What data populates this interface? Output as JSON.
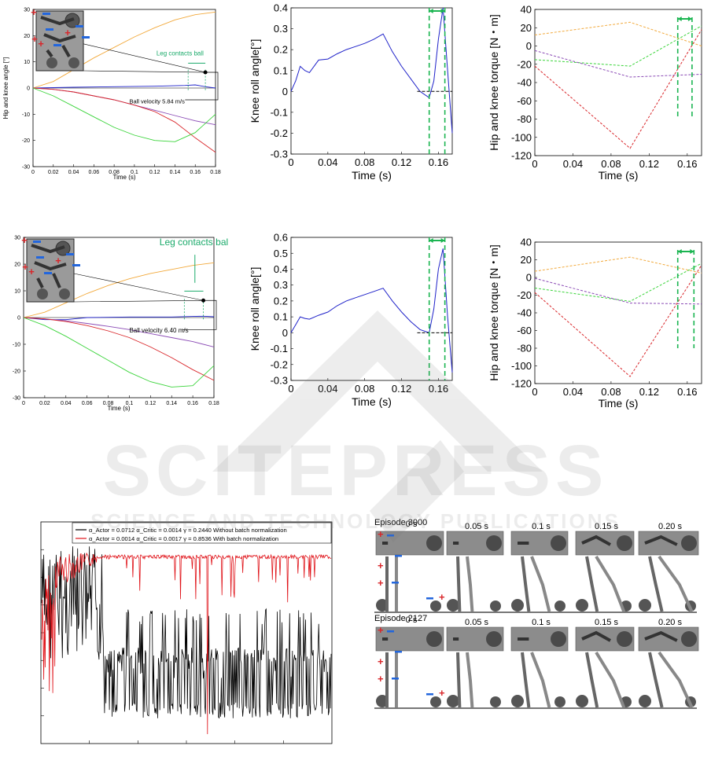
{
  "watermark": {
    "title": "SCITEPRESS",
    "subtitle": "SCIENCE AND TECHNOLOGY PUBLICATIONS"
  },
  "colors": {
    "orange": "#f2a93b",
    "blue": "#1f22c9",
    "red": "#d9262a",
    "purple": "#8a4ab5",
    "green": "#3ad43a",
    "teal": "#1aaa6a",
    "dash_green": "#1bb551",
    "black": "#000000"
  },
  "figure_rows": [
    {
      "angle_plot": {
        "ylabel": "Hip and knee angle [°]",
        "xlabel": "Time (s)",
        "ylim": [
          -30,
          30
        ],
        "xlim": [
          0,
          0.18
        ],
        "yticks": [
          "30",
          "20",
          "10",
          "0",
          "-10",
          "-20",
          "-30"
        ],
        "xticks": [
          "0",
          "0.02",
          "0.04",
          "0.06",
          "0.08",
          "0.1",
          "0.12",
          "0.14",
          "0.16",
          "0.18"
        ],
        "contact_label": "Leg contacts ball",
        "ball_velocity": "Ball velocity 5.84 m/s",
        "series": [
          {
            "color": "orange",
            "x": [
              0,
              0.02,
              0.04,
              0.06,
              0.08,
              0.1,
              0.12,
              0.14,
              0.16,
              0.18
            ],
            "y": [
              0,
              2.5,
              7,
              11.5,
              15.5,
              19.5,
              23,
              26,
              28,
              29
            ]
          },
          {
            "color": "blue",
            "x": [
              0,
              0.04,
              0.08,
              0.12,
              0.15,
              0.16,
              0.17,
              0.18
            ],
            "y": [
              0,
              0.3,
              0.5,
              0.7,
              1,
              1.2,
              0.5,
              0
            ]
          },
          {
            "color": "purple",
            "x": [
              0,
              0.02,
              0.04,
              0.06,
              0.08,
              0.1,
              0.12,
              0.14,
              0.16,
              0.18
            ],
            "y": [
              0,
              -0.5,
              -1.5,
              -3,
              -4.5,
              -6.5,
              -8.5,
              -10.5,
              -12.5,
              -14
            ]
          },
          {
            "color": "red",
            "x": [
              0,
              0.02,
              0.04,
              0.06,
              0.08,
              0.1,
              0.12,
              0.14,
              0.16,
              0.18
            ],
            "y": [
              0,
              -0.5,
              -1.5,
              -3,
              -4.5,
              -6.5,
              -9,
              -13,
              -19,
              -24.5
            ]
          },
          {
            "color": "green",
            "x": [
              0,
              0.02,
              0.04,
              0.06,
              0.08,
              0.1,
              0.12,
              0.14,
              0.16,
              0.18
            ],
            "y": [
              0,
              -3,
              -7,
              -11,
              -15,
              -18,
              -20,
              -20.5,
              -17,
              -10
            ]
          }
        ],
        "contact_window": [
          0.153,
          0.17
        ],
        "contact_point": [
          0.17,
          6
        ]
      },
      "roll_plot": {
        "ylabel": "Knee roll angle[°]",
        "xlabel": "Time (s)",
        "ylim": [
          -0.3,
          0.4
        ],
        "xlim": [
          0,
          0.175
        ],
        "yticks": [
          "0.4",
          "0.3",
          "0.2",
          "0.1",
          "0",
          "-0.1",
          "-0.2",
          "-0.3"
        ],
        "xticks": [
          "0",
          "0.04",
          "0.08",
          "0.12",
          "0.16"
        ],
        "zero_label": "0",
        "window": [
          0.15,
          0.167
        ],
        "series": {
          "x": [
            0,
            0.005,
            0.01,
            0.015,
            0.02,
            0.03,
            0.04,
            0.05,
            0.06,
            0.07,
            0.08,
            0.09,
            0.1,
            0.11,
            0.12,
            0.13,
            0.14,
            0.15,
            0.155,
            0.16,
            0.165,
            0.17,
            0.175
          ],
          "y": [
            0,
            0.05,
            0.12,
            0.1,
            0.09,
            0.15,
            0.155,
            0.18,
            0.2,
            0.215,
            0.23,
            0.25,
            0.275,
            0.19,
            0.12,
            0.06,
            0.0,
            -0.03,
            0.05,
            0.25,
            0.4,
            0.1,
            -0.2
          ]
        }
      },
      "torque_plot": {
        "ylabel": "Hip and knee torque [N・m]",
        "xlabel": "Time (s)",
        "ylim": [
          -120,
          40
        ],
        "xlim": [
          0,
          0.175
        ],
        "yticks": [
          "40",
          "20",
          "0",
          "-20",
          "-40",
          "-60",
          "-80",
          "-100",
          "-120"
        ],
        "xticks": [
          "0",
          "0.04",
          "0.08",
          "0.12",
          "0.16"
        ],
        "window": [
          0.15,
          0.165
        ],
        "series": [
          {
            "color": "orange",
            "x": [
              0,
              0.1,
              0.175
            ],
            "y": [
              12,
              26,
              0
            ]
          },
          {
            "color": "green",
            "x": [
              0,
              0.1,
              0.175
            ],
            "y": [
              -15,
              -22,
              22
            ]
          },
          {
            "color": "purple",
            "x": [
              0,
              0.1,
              0.175
            ],
            "y": [
              -5,
              -34,
              -31
            ]
          },
          {
            "color": "red",
            "x": [
              0,
              0.1,
              0.175
            ],
            "y": [
              -22,
              -112,
              18
            ]
          }
        ]
      }
    },
    {
      "angle_plot": {
        "ylabel": "",
        "xlabel": "Time (s)",
        "ylim": [
          -30,
          30
        ],
        "xlim": [
          0,
          0.18
        ],
        "yticks": [
          "30",
          "20",
          "10",
          "0",
          "-10",
          "-20",
          "-30"
        ],
        "xticks": [
          "0",
          "0.02",
          "0.04",
          "0.06",
          "0.08",
          "0.1",
          "0.12",
          "0.14",
          "0.16",
          "0.18"
        ],
        "contact_label": "Leg contacts ball",
        "ball_velocity": "Ball velocity 6.40 m/s",
        "series": [
          {
            "color": "orange",
            "x": [
              0,
              0.02,
              0.04,
              0.06,
              0.08,
              0.1,
              0.12,
              0.14,
              0.16,
              0.18
            ],
            "y": [
              0,
              2,
              5.5,
              9,
              12,
              14.5,
              16.5,
              18,
              19.5,
              20.5
            ]
          },
          {
            "color": "blue",
            "x": [
              0,
              0.02,
              0.04,
              0.06,
              0.1,
              0.14,
              0.16,
              0.17,
              0.18
            ],
            "y": [
              0,
              -0.8,
              -0.8,
              0,
              0.2,
              0.2,
              0.4,
              0.5,
              0.3
            ]
          },
          {
            "color": "purple",
            "x": [
              0,
              0.02,
              0.04,
              0.06,
              0.08,
              0.1,
              0.12,
              0.14,
              0.16,
              0.18
            ],
            "y": [
              0,
              -0.5,
              -1.2,
              -2.2,
              -3.3,
              -4.5,
              -6,
              -7.5,
              -9,
              -11
            ]
          },
          {
            "color": "red",
            "x": [
              0,
              0.02,
              0.04,
              0.06,
              0.08,
              0.1,
              0.12,
              0.14,
              0.16,
              0.18
            ],
            "y": [
              0,
              -0.5,
              -1.5,
              -3,
              -5,
              -7.5,
              -11,
              -15,
              -19.5,
              -23.5
            ]
          },
          {
            "color": "green",
            "x": [
              0,
              0.02,
              0.04,
              0.06,
              0.08,
              0.1,
              0.12,
              0.14,
              0.16,
              0.18
            ],
            "y": [
              0,
              -3,
              -7,
              -11.5,
              -16,
              -20.5,
              -24,
              -26,
              -25.5,
              -18
            ]
          }
        ],
        "contact_window": [
          0.152,
          0.17
        ],
        "contact_point": [
          0.17,
          6.4
        ]
      },
      "roll_plot": {
        "ylabel": "Knee roll angle[°]",
        "xlabel": "Time (s)",
        "ylim": [
          -0.3,
          0.6
        ],
        "xlim": [
          0,
          0.175
        ],
        "yticks": [
          "0.6",
          "0.5",
          "0.4",
          "0.3",
          "0.2",
          "0.1",
          "0",
          "-0.1",
          "-0.2",
          "-0.3"
        ],
        "xticks": [
          "0",
          "0.04",
          "0.08",
          "0.12",
          "0.16"
        ],
        "zero_label": "0",
        "window": [
          0.15,
          0.167
        ],
        "series": {
          "x": [
            0,
            0.005,
            0.01,
            0.015,
            0.02,
            0.03,
            0.04,
            0.05,
            0.06,
            0.07,
            0.08,
            0.09,
            0.1,
            0.11,
            0.12,
            0.13,
            0.14,
            0.15,
            0.155,
            0.16,
            0.165,
            0.17,
            0.175
          ],
          "y": [
            0,
            0.05,
            0.1,
            0.09,
            0.085,
            0.11,
            0.13,
            0.17,
            0.2,
            0.22,
            0.24,
            0.26,
            0.28,
            0.2,
            0.13,
            0.07,
            0.02,
            0.0,
            0.15,
            0.4,
            0.53,
            0.1,
            -0.25
          ]
        }
      },
      "torque_plot": {
        "ylabel": "Hip and knee torque [N・m]",
        "xlabel": "Time (s)",
        "ylim": [
          -120,
          40
        ],
        "xlim": [
          0,
          0.175
        ],
        "yticks": [
          "40",
          "20",
          "0",
          "-20",
          "-40",
          "-60",
          "-80",
          "-100",
          "-120"
        ],
        "xticks": [
          "0",
          "0.04",
          "0.08",
          "0.12",
          "0.16"
        ],
        "window": [
          0.15,
          0.167
        ],
        "series": [
          {
            "color": "orange",
            "x": [
              0,
              0.1,
              0.175
            ],
            "y": [
              7,
              23,
              5
            ]
          },
          {
            "color": "green",
            "x": [
              0,
              0.1,
              0.175
            ],
            "y": [
              -12,
              -27,
              16
            ]
          },
          {
            "color": "purple",
            "x": [
              0,
              0.1,
              0.175
            ],
            "y": [
              -1,
              -29,
              -30
            ]
          },
          {
            "color": "red",
            "x": [
              0,
              0.1,
              0.175
            ],
            "y": [
              -17,
              -112,
              14
            ]
          }
        ]
      }
    }
  ],
  "chart_data": {
    "type": "line",
    "title": "",
    "legend": [
      {
        "color": "black",
        "label": "α_Actor = 0.0712 α_Critic = 0.0014 γ = 0.2440 Without batch normalization"
      },
      {
        "color": "red",
        "label": "α_Actor = 0.0014 α_Critic = 0.0017 γ = 0.8536 With batch normalization"
      }
    ],
    "legend_placement": "top-right",
    "grid": false
  },
  "episodes": [
    {
      "label": "Episode 3000",
      "times": [
        "0 s",
        "0.05 s",
        "0.1 s",
        "0.15 s",
        "0.20 s"
      ]
    },
    {
      "label": "Episode 2127",
      "times": [
        "0 s",
        "0.05 s",
        "0.1 s",
        "0.15 s",
        "0.20 s"
      ]
    }
  ]
}
